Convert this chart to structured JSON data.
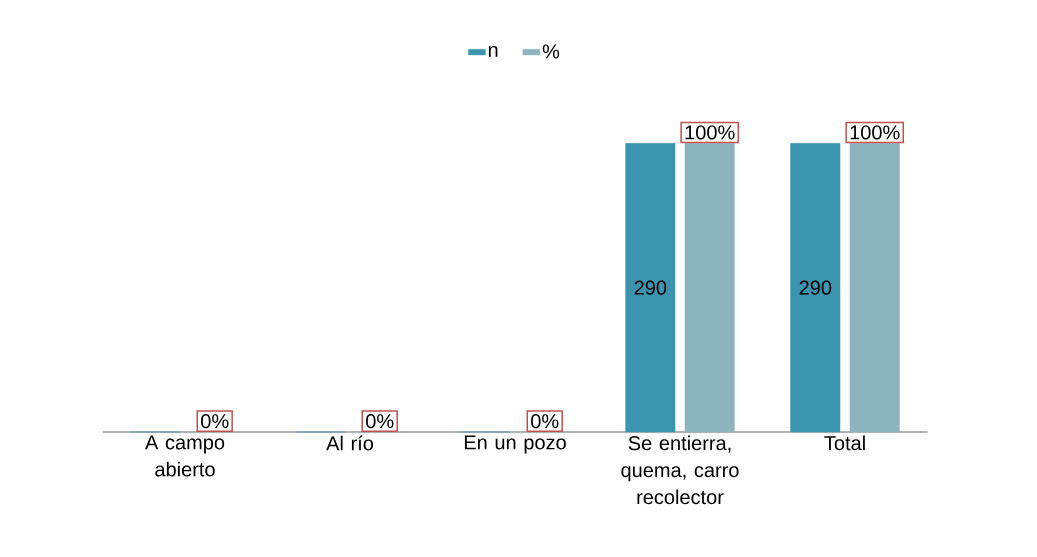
{
  "chart_data": {
    "type": "bar",
    "categories": [
      "A campo abierto",
      "Al río",
      "En un pozo",
      "Se entierra, quema, carro recolector",
      "Total"
    ],
    "series": [
      {
        "name": "n",
        "color": "#3b95ae",
        "values": [
          0,
          0,
          0,
          290,
          290
        ],
        "value_labels": [
          null,
          null,
          null,
          "290",
          "290"
        ]
      },
      {
        "name": "%",
        "color": "#8db3be",
        "axis": "y2",
        "values": [
          0,
          0,
          0,
          100,
          100
        ],
        "value_labels": [
          "0%",
          "0%",
          "0%",
          "100%",
          "100%"
        ]
      }
    ],
    "legend": "top"
  }
}
